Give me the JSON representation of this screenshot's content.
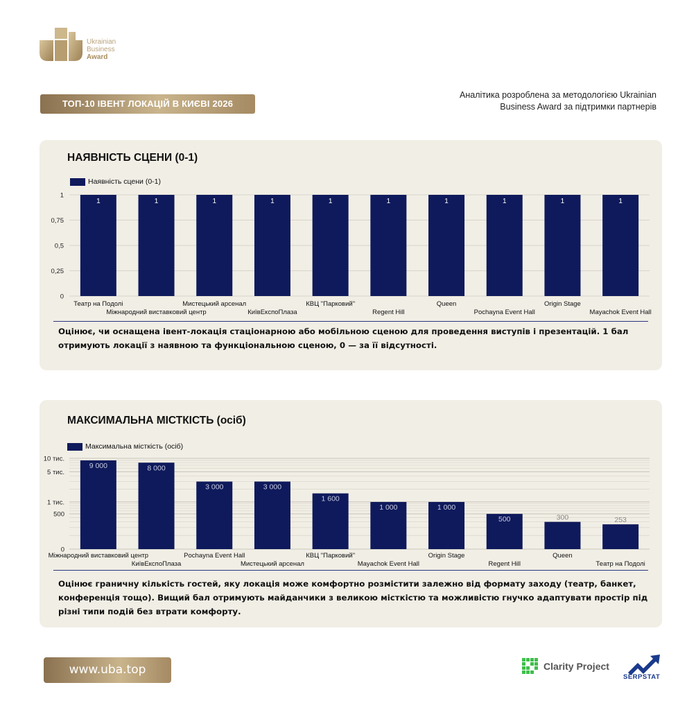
{
  "logo": {
    "line1": "Ukrainian",
    "line2": "Business",
    "line3": "Award"
  },
  "header": {
    "title_badge": "ТОП-10 ІВЕНТ ЛОКАЦІЙ В КИЄВІ 2026",
    "analytics_line1": "Аналітика розроблена за методологією Ukrainian",
    "analytics_line2": "Business Award за підтримки партнерів"
  },
  "colors": {
    "bar": "#0f1a5c",
    "card": "#f1eee5",
    "gold": "#b9a27a"
  },
  "card1": {
    "title": "НАЯВНІСТЬ СЦЕНИ (0-1)",
    "description": "Оцінює, чи оснащена івент-локація стаціонарною або мобільною сценою для проведення виступів і презентацій. 1 бал отримують локації з наявною та функціональною сценою, 0 — за її відсутності."
  },
  "card2": {
    "title": "МАКСИМАЛЬНА МІСТКІСТЬ (осіб)",
    "description": "Оцінює граничну кількість гостей, яку локація може комфортно розмістити залежно від формату заходу (театр, банкет, конференція тощо). Вищий бал отримують майданчики з великою місткістю та можливістю гнучко адаптувати простір під різні типи подій без втрати комфорту."
  },
  "chart_data": [
    {
      "type": "bar",
      "title": "НАЯВНІСТЬ СЦЕНИ (0-1)",
      "categories": [
        "Театр на Подолі",
        "Міжнародний виставковий центр",
        "Мистецький арсенал",
        "КиївЕкспоПлаза",
        "КВЦ \"Парковий\"",
        "Regent Hill",
        "Queen",
        "Pochayna Event Hall",
        "Origin Stage",
        "Mayachok Event Hall"
      ],
      "series": [
        {
          "name": "Наявність сцени (0-1)",
          "values": [
            1,
            1,
            1,
            1,
            1,
            1,
            1,
            1,
            1,
            1
          ]
        }
      ],
      "value_labels": [
        "1",
        "1",
        "1",
        "1",
        "1",
        "1",
        "1",
        "1",
        "1",
        "1"
      ],
      "yticks": [
        0,
        0.25,
        0.5,
        0.75,
        1
      ],
      "ytick_labels": [
        "0",
        "0,25",
        "0,5",
        "0,75",
        "1"
      ],
      "ylim": [
        0,
        1
      ],
      "grid": true,
      "legend": "top-left"
    },
    {
      "type": "bar",
      "title": "МАКСИМАЛЬНА МІСТКІСТЬ (осіб)",
      "categories": [
        "Міжнародний виставковий центр",
        "КиївЕкспоПлаза",
        "Pochayna Event Hall",
        "Мистецький арсенал",
        "КВЦ \"Парковий\"",
        "Mayachok Event Hall",
        "Origin Stage",
        "Regent Hill",
        "Queen",
        "Театр на Подолі"
      ],
      "series": [
        {
          "name": "Максимальна місткість (осіб)",
          "values": [
            9000,
            8000,
            3000,
            3000,
            1600,
            1000,
            1000,
            500,
            300,
            253
          ]
        }
      ],
      "value_labels": [
        "9 000",
        "8 000",
        "3 000",
        "3 000",
        "1 600",
        "1 000",
        "1 000",
        "500",
        "300",
        "253"
      ],
      "yscale": "log",
      "yticks": [
        0,
        500,
        1000,
        5000,
        10000
      ],
      "ytick_labels": [
        "0",
        "500",
        "1 тис.",
        "5 тис.",
        "10 тис."
      ],
      "ylim": [
        0,
        10000
      ],
      "grid": true,
      "legend": "top-left"
    }
  ],
  "footer": {
    "url": "www.uba.top",
    "partner1": "Clarity Project",
    "partner2": "SERPSTAT"
  }
}
